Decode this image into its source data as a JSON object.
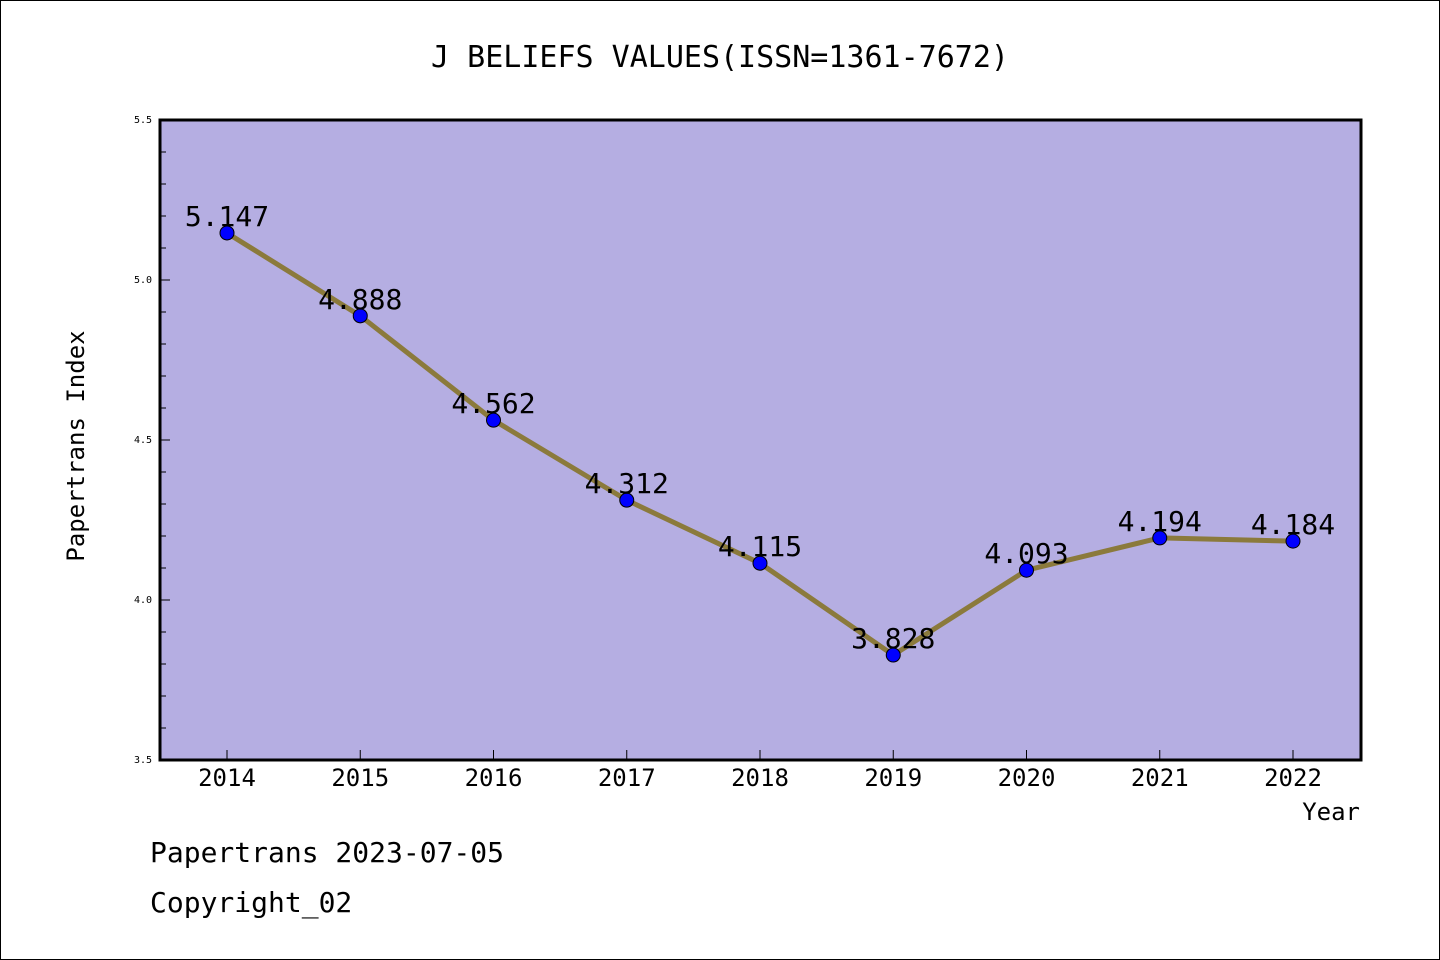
{
  "chart_data": {
    "type": "line",
    "title": "J BELIEFS VALUES(ISSN=1361-7672)",
    "xlabel": "Year",
    "ylabel": "Papertrans Index",
    "categories": [
      "2014",
      "2015",
      "2016",
      "2017",
      "2018",
      "2019",
      "2020",
      "2021",
      "2022"
    ],
    "values": [
      5.147,
      4.888,
      4.562,
      4.312,
      4.115,
      3.828,
      4.093,
      4.194,
      4.184
    ],
    "value_labels": [
      "5.147",
      "4.888",
      "4.562",
      "4.312",
      "4.115",
      "3.828",
      "4.093",
      "4.194",
      "4.184"
    ],
    "ylim": [
      3.5,
      5.5
    ],
    "y_ticks": [
      "3.5",
      "4.0",
      "4.5",
      "5.0",
      "5.5"
    ],
    "grid": false,
    "legend": "none",
    "colors": {
      "plot_background": "#b5aee2",
      "line": "#8b7a3c",
      "marker": "#0000ff",
      "axis": "#000000"
    }
  },
  "footer": {
    "line1": "Papertrans 2023-07-05",
    "line2": "Copyright_02"
  }
}
